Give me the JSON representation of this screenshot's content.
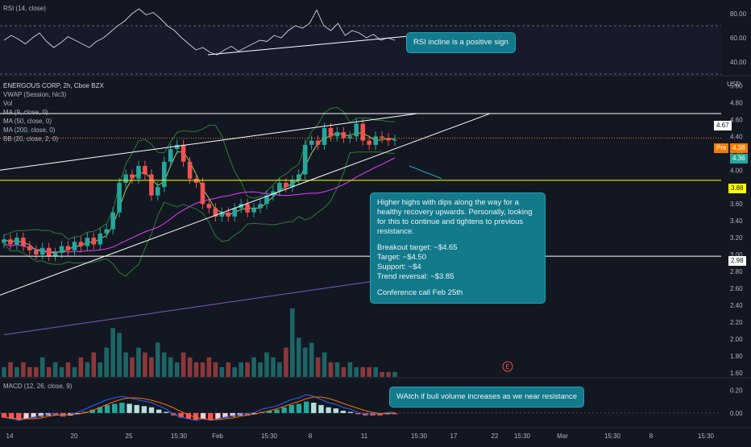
{
  "rsi_pane": {
    "title": "RSI (14, close)",
    "ticks": [
      "80.00",
      "60.00",
      "40.00"
    ],
    "ylim": [
      30,
      90
    ]
  },
  "price_pane": {
    "title": "ENERGOUS CORP, 2h, Cboe BZX",
    "currency": "USD",
    "indicators": [
      "VWAP (Session, hlc3)",
      "Vol",
      "MA (9, close, 0)",
      "MA (50, close, 0)",
      "MA (200, close, 0)",
      "BB (20, close, 2, 0)"
    ],
    "ticks": [
      "5.00",
      "4.80",
      "4.60",
      "4.40",
      "4.20",
      "4.00",
      "3.80",
      "3.60",
      "3.40",
      "3.20",
      "3.00",
      "2.80",
      "2.60",
      "2.40",
      "2.20",
      "2.00",
      "1.80",
      "1.60"
    ],
    "ylim": [
      1.55,
      5.1
    ]
  },
  "price_tags": {
    "pre_label": "Pre",
    "pre_value": "4.38",
    "last_value": "4.36",
    "resistance": "4.67",
    "support": "3.88",
    "low": "2.98"
  },
  "macd_pane": {
    "title": "MACD (12, 26, close, 9)",
    "ticks": [
      "0.20",
      "0.00"
    ],
    "ylim": [
      -0.12,
      0.3
    ]
  },
  "x_axis": {
    "labels": [
      "14",
      "20",
      "25",
      "15:30",
      "Feb",
      "15:30",
      "8",
      "11",
      "15:30",
      "17",
      "22",
      "15:30",
      "Mar",
      "15:30",
      "8",
      "15:30"
    ]
  },
  "notes": {
    "rsi": "RSI incline is a positive sign",
    "main_lines": [
      "Higher highs with dips along the way for a healthy recovery upwards. Personally, looking for this to continue and tightens to previous resistance.",
      "",
      "Breakout target: ~$4.65",
      "Target: ~$4.50",
      "Support: ~$4",
      "Trend reversal: ~$3.85",
      "",
      "Conference call Feb 25th"
    ],
    "macd": "WAtch if bull volume increases as we near resistance"
  },
  "event_marker": "E",
  "colors": {
    "background": "#131722",
    "up": "#26a69a",
    "down": "#ef5350",
    "resistance_line": "#ffffff",
    "support_line": "#ffff00",
    "note_bg": "#127a8b",
    "ma9": "#9ccc65",
    "ma50": "#e040fb",
    "ma200": "#7e57c2",
    "bb": "#2e7d32",
    "vwap": "#ff9800",
    "macd_line": "#2962ff",
    "signal_line": "#ff6d00"
  },
  "chart_data": [
    {
      "type": "line",
      "name": "RSI",
      "y": [
        58,
        62,
        59,
        55,
        60,
        64,
        57,
        52,
        56,
        61,
        58,
        55,
        52,
        57,
        60,
        65,
        70,
        74,
        80,
        84,
        79,
        81,
        76,
        70,
        66,
        60,
        55,
        50,
        52,
        48,
        46,
        50,
        53,
        49,
        52,
        55,
        58,
        57,
        62,
        60,
        66,
        70,
        68,
        72,
        83,
        70,
        66,
        72,
        62,
        66,
        64,
        60,
        63,
        58,
        60,
        58
      ],
      "annotations": [
        "RSI trend line from ~46 to ~64"
      ]
    },
    {
      "type": "candlestick",
      "name": "ENERGOUS CORP",
      "close": [
        3.18,
        3.12,
        3.2,
        3.1,
        3.05,
        3.0,
        3.08,
        2.98,
        3.02,
        3.1,
        3.05,
        3.15,
        3.1,
        3.2,
        3.12,
        3.25,
        3.3,
        3.5,
        3.85,
        3.95,
        3.9,
        4.05,
        3.95,
        3.7,
        3.8,
        4.1,
        4.25,
        4.3,
        4.1,
        3.9,
        3.85,
        3.6,
        3.55,
        3.45,
        3.5,
        3.45,
        3.55,
        3.6,
        3.5,
        3.55,
        3.6,
        3.7,
        3.75,
        3.85,
        3.8,
        3.88,
        3.95,
        4.3,
        4.35,
        4.3,
        4.5,
        4.4,
        4.45,
        4.38,
        4.4,
        4.55,
        4.35,
        4.3,
        4.4,
        4.38,
        4.35,
        4.36
      ],
      "resistance_lines": [
        4.67,
        3.88,
        2.98
      ],
      "pre_market": 4.38,
      "last": 4.36
    },
    {
      "type": "bar",
      "name": "Vol",
      "values": [
        2,
        3,
        2,
        3,
        2,
        2,
        4,
        2,
        3,
        2,
        3,
        2,
        4,
        3,
        5,
        3,
        6,
        10,
        9,
        5,
        4,
        6,
        5,
        4,
        7,
        5,
        4,
        3,
        5,
        4,
        3,
        3,
        4,
        3,
        2,
        3,
        2,
        3,
        3,
        4,
        3,
        5,
        4,
        3,
        6,
        14,
        8,
        6,
        7,
        4,
        5,
        3,
        3,
        2,
        3,
        2,
        2,
        2,
        2,
        1,
        1,
        1
      ]
    },
    {
      "type": "bar",
      "name": "MACD",
      "values": [
        -0.04,
        -0.05,
        -0.06,
        -0.05,
        -0.04,
        -0.03,
        -0.02,
        -0.02,
        -0.03,
        -0.02,
        -0.01,
        0.01,
        0.03,
        0.05,
        0.07,
        0.08,
        0.09,
        0.08,
        0.07,
        0.06,
        0.05,
        0.03,
        0.01,
        -0.02,
        -0.04,
        -0.05,
        -0.06,
        -0.05,
        -0.06,
        -0.05,
        -0.04,
        -0.03,
        -0.02,
        -0.02,
        -0.01,
        0.01,
        0.02,
        0.03,
        0.05,
        0.07,
        0.08,
        0.1,
        0.09,
        0.07,
        0.05,
        0.04,
        0.02,
        0.01,
        -0.01,
        -0.02,
        -0.02,
        -0.02,
        -0.01,
        -0.01
      ],
      "lines": [
        "MACD",
        "Signal"
      ]
    }
  ]
}
